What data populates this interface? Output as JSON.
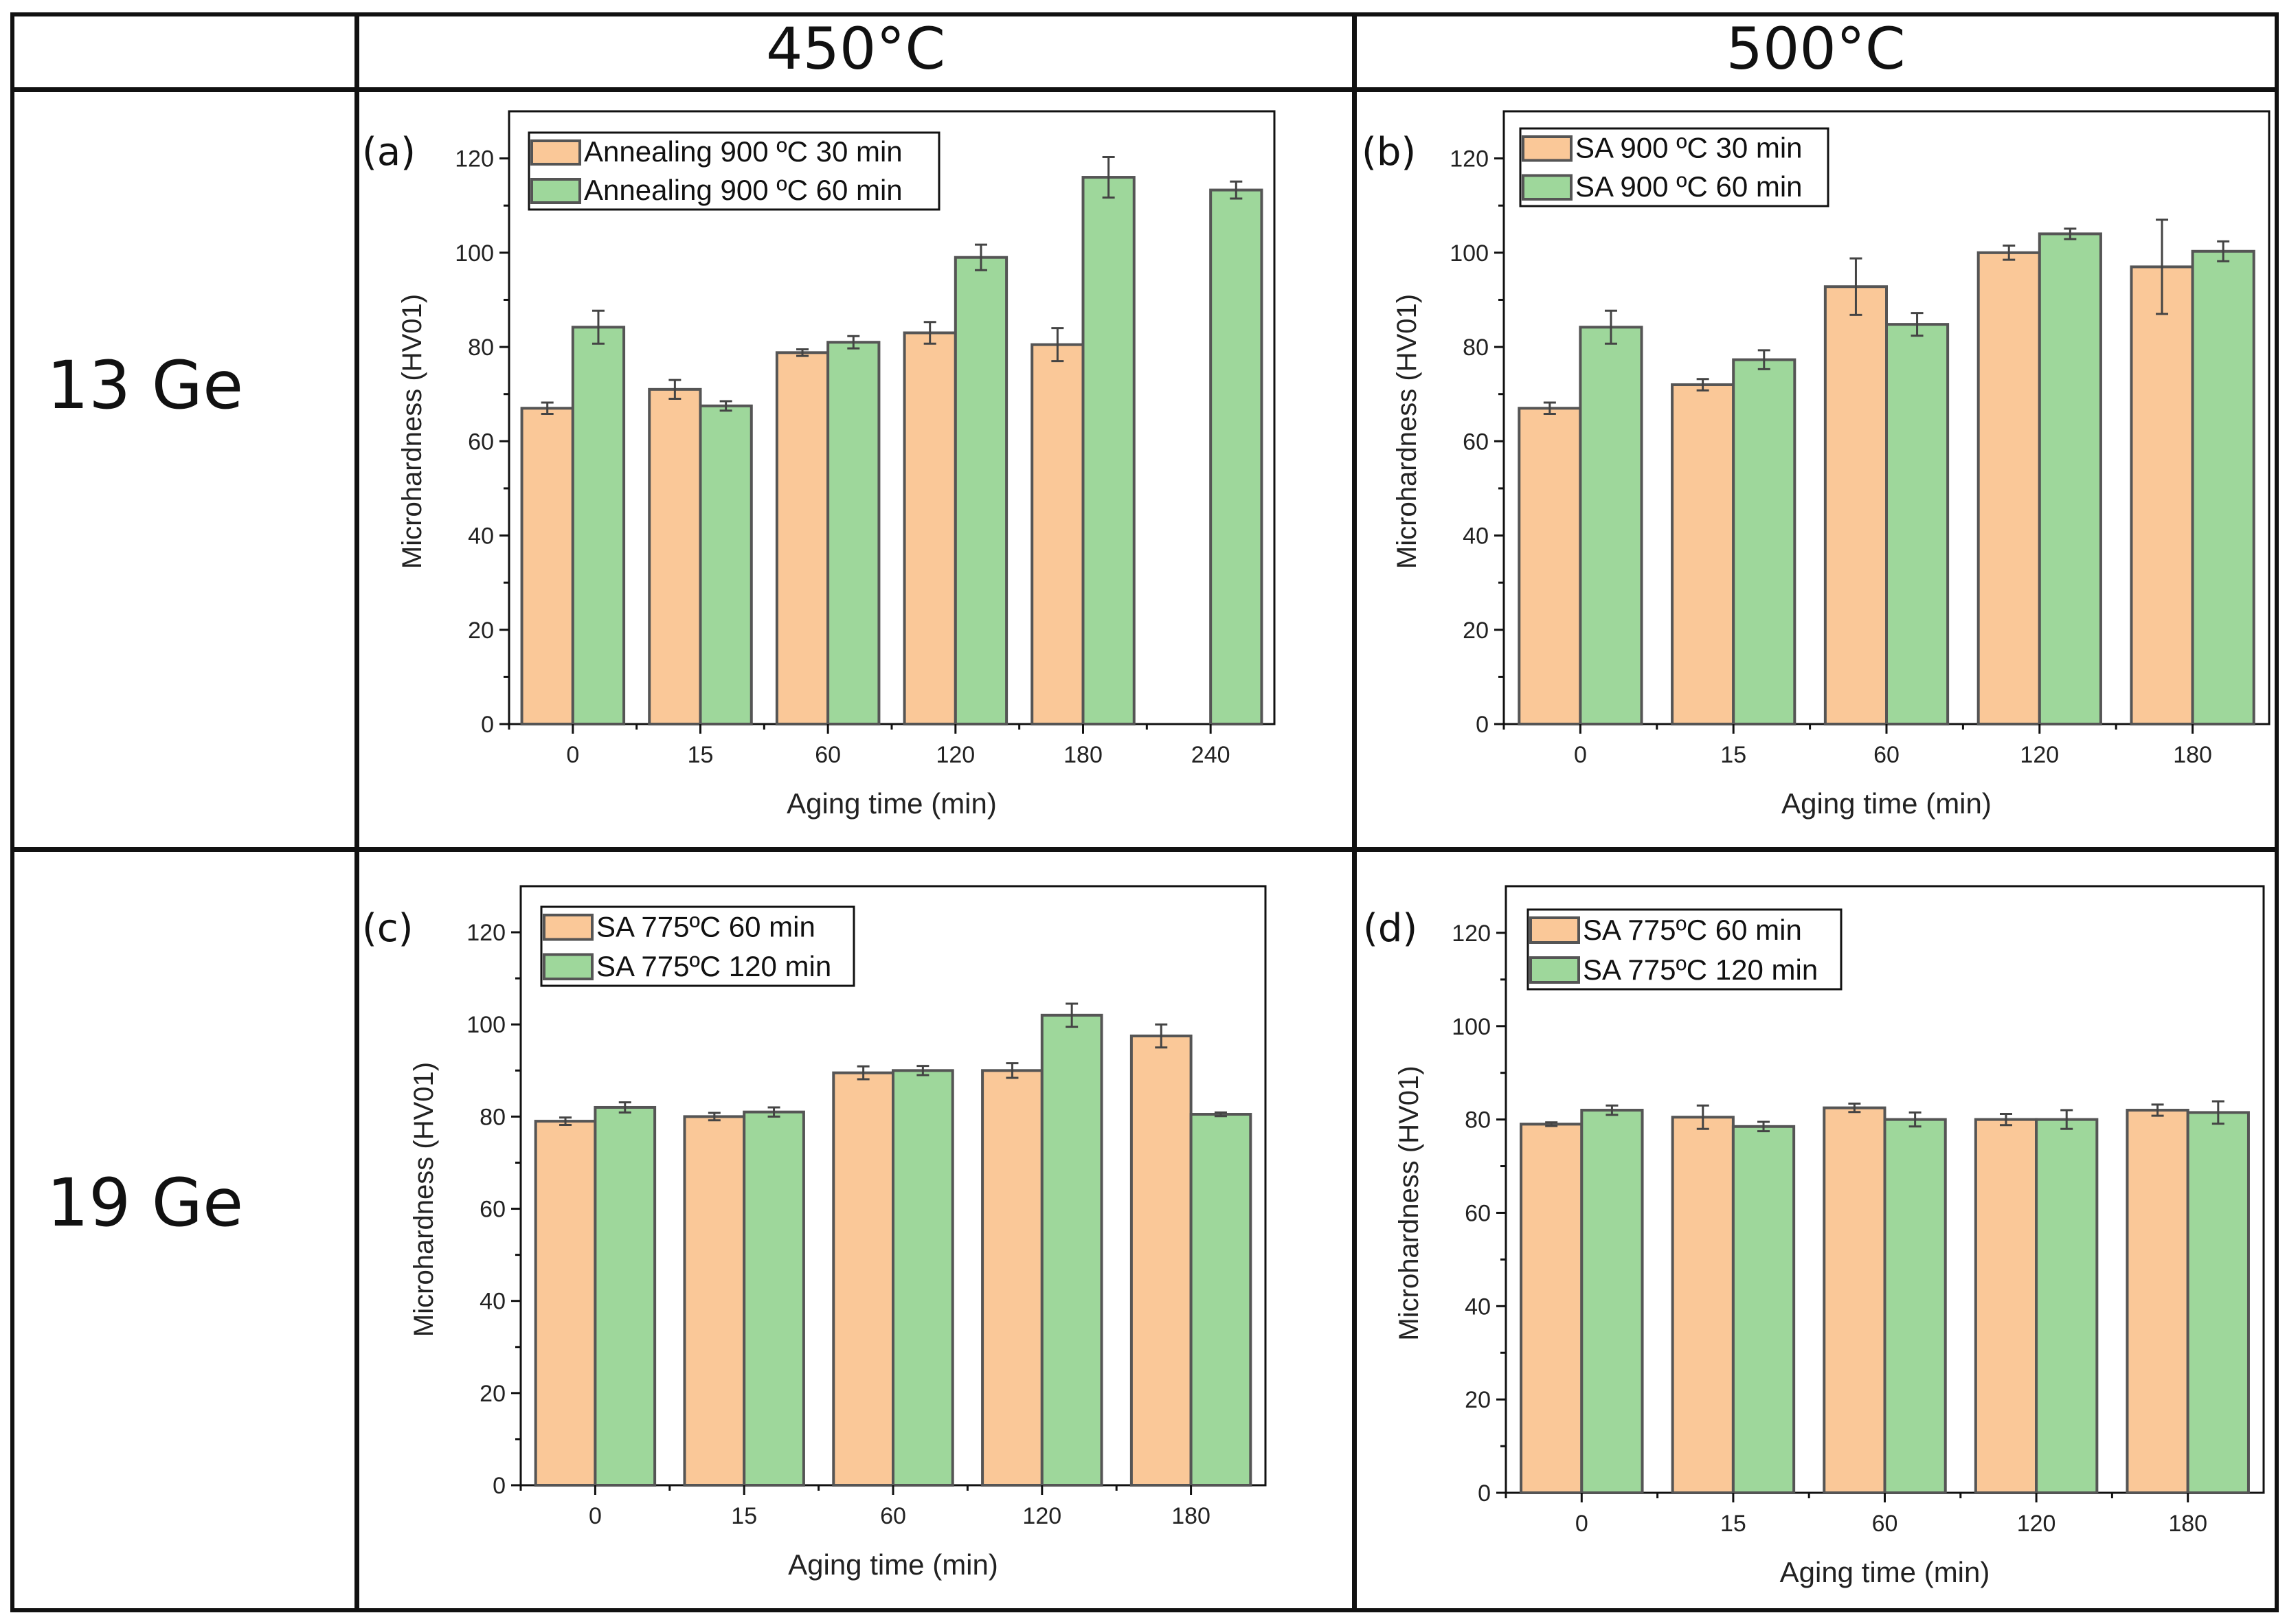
{
  "table": {
    "corner": "",
    "columns": [
      "450°C",
      "500°C"
    ],
    "rows": [
      "13 Ge",
      "19 Ge"
    ]
  },
  "colors": {
    "series_30": "#fac898",
    "series_60": "#9ed79b",
    "outline": "#555555"
  },
  "chart_data": [
    {
      "type": "bar",
      "panel": "(a)",
      "categories": [
        "0",
        "15",
        "60",
        "120",
        "180",
        "240"
      ],
      "series": [
        {
          "name": "Annealing 900 ºC 30 min",
          "values": [
            67,
            71,
            78.8,
            83,
            80.5,
            null
          ],
          "errors": [
            1.2,
            2,
            0.7,
            2.3,
            3.5,
            null
          ]
        },
        {
          "name": "Annealing 900 ºC 60 min",
          "values": [
            84.2,
            67.5,
            81,
            99,
            116,
            113.3
          ],
          "errors": [
            3.5,
            1,
            1.3,
            2.7,
            4.3,
            1.8
          ]
        }
      ],
      "xlabel": "Aging time (min)",
      "ylabel": "Microhardness (HV01)",
      "ylim": [
        0,
        130
      ],
      "yticks": [
        0,
        20,
        40,
        60,
        80,
        100,
        120
      ],
      "legend": "top-left"
    },
    {
      "type": "bar",
      "panel": "(b)",
      "categories": [
        "0",
        "15",
        "60",
        "120",
        "180"
      ],
      "series": [
        {
          "name": "SA 900 ºC 30 min",
          "values": [
            67,
            72,
            92.8,
            100,
            97
          ],
          "errors": [
            1.2,
            1.2,
            6,
            1.5,
            10
          ]
        },
        {
          "name": "SA 900 ºC 60 min",
          "values": [
            84.2,
            77.3,
            84.8,
            104,
            100.3
          ],
          "errors": [
            3.5,
            2,
            2.4,
            1.1,
            2.1
          ]
        }
      ],
      "xlabel": "Aging time (min)",
      "ylabel": "Microhardness (HV01)",
      "ylim": [
        0,
        130
      ],
      "yticks": [
        0,
        20,
        40,
        60,
        80,
        100,
        120
      ],
      "legend": "top-left"
    },
    {
      "type": "bar",
      "panel": "(c)",
      "categories": [
        "0",
        "15",
        "60",
        "120",
        "180"
      ],
      "series": [
        {
          "name": "SA 775ºC 60 min",
          "values": [
            79,
            80,
            89.5,
            90,
            97.5
          ],
          "errors": [
            0.8,
            0.8,
            1.4,
            1.6,
            2.5
          ]
        },
        {
          "name": "SA 775ºC 120 min",
          "values": [
            82,
            81,
            90,
            102,
            80.5
          ],
          "errors": [
            1.1,
            1,
            1,
            2.5,
            0.4
          ]
        }
      ],
      "xlabel": "Aging time (min)",
      "ylabel": "Microhardness (HV01)",
      "ylim": [
        0,
        130
      ],
      "yticks": [
        0,
        20,
        40,
        60,
        80,
        100,
        120
      ],
      "legend": "top-left"
    },
    {
      "type": "bar",
      "panel": "(d)",
      "categories": [
        "0",
        "15",
        "60",
        "120",
        "180"
      ],
      "series": [
        {
          "name": "SA 775ºC 60 min",
          "values": [
            79,
            80.5,
            82.5,
            80,
            82
          ],
          "errors": [
            0.4,
            2.5,
            0.9,
            1.2,
            1.2
          ]
        },
        {
          "name": "SA 775ºC 120 min",
          "values": [
            82,
            78.5,
            80,
            80,
            81.5
          ],
          "errors": [
            1,
            1,
            1.5,
            2,
            2.4
          ]
        }
      ],
      "xlabel": "Aging time (min)",
      "ylabel": "Microhardness (HV01)",
      "ylim": [
        0,
        130
      ],
      "yticks": [
        0,
        20,
        40,
        60,
        80,
        100,
        120
      ],
      "legend": "top-left"
    }
  ]
}
